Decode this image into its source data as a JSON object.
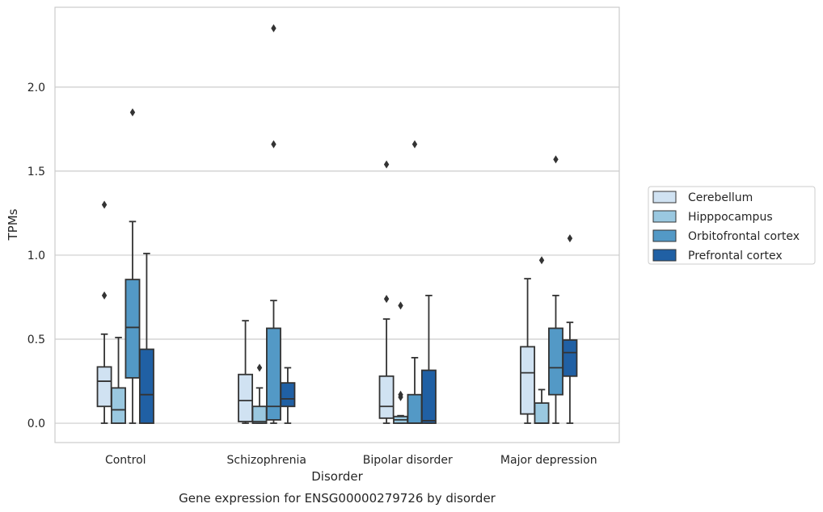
{
  "chart_data": {
    "type": "box",
    "title": "Gene expression for ENSG00000279726 by disorder",
    "xlabel": "Disorder",
    "ylabel": "TPMs",
    "ylim": [
      -0.115,
      2.475
    ],
    "y_ticks": [
      "0.0",
      "0.5",
      "1.0",
      "1.5",
      "2.0"
    ],
    "grid": true,
    "legend_position": "right",
    "categories": [
      "Control",
      "Schizophrenia",
      "Bipolar disorder",
      "Major depression"
    ],
    "series": [
      {
        "name": "Cerebellum",
        "color": "#d0e2f2",
        "boxes": [
          {
            "whislo": 0.0,
            "q1": 0.1,
            "med": 0.25,
            "q3": 0.335,
            "whishi": 0.53,
            "fliers": [
              0.76,
              1.3
            ]
          },
          {
            "whislo": 0.0,
            "q1": 0.01,
            "med": 0.135,
            "q3": 0.29,
            "whishi": 0.61,
            "fliers": []
          },
          {
            "whislo": 0.0,
            "q1": 0.03,
            "med": 0.1,
            "q3": 0.28,
            "whishi": 0.62,
            "fliers": [
              0.74,
              1.54
            ]
          },
          {
            "whislo": 0.0,
            "q1": 0.055,
            "med": 0.3,
            "q3": 0.455,
            "whishi": 0.86,
            "fliers": []
          }
        ]
      },
      {
        "name": "Hipppocampus",
        "color": "#9ac8e0",
        "boxes": [
          {
            "whislo": 0.0,
            "q1": 0.0,
            "med": 0.08,
            "q3": 0.21,
            "whishi": 0.51,
            "fliers": []
          },
          {
            "whislo": 0.0,
            "q1": 0.0,
            "med": 0.01,
            "q3": 0.1,
            "whishi": 0.21,
            "fliers": [
              0.33
            ]
          },
          {
            "whislo": 0.0,
            "q1": 0.0,
            "med": 0.02,
            "q3": 0.04,
            "whishi": 0.045,
            "fliers": [
              0.155,
              0.17,
              0.7
            ]
          },
          {
            "whislo": 0.0,
            "q1": 0.0,
            "med": 0.0,
            "q3": 0.12,
            "whishi": 0.2,
            "fliers": [
              0.97
            ]
          }
        ]
      },
      {
        "name": "Orbitofrontal cortex",
        "color": "#5399c6",
        "boxes": [
          {
            "whislo": 0.0,
            "q1": 0.27,
            "med": 0.57,
            "q3": 0.855,
            "whishi": 1.2,
            "fliers": [
              1.85
            ]
          },
          {
            "whislo": 0.0,
            "q1": 0.02,
            "med": 0.1,
            "q3": 0.565,
            "whishi": 0.73,
            "fliers": [
              1.66,
              2.35
            ]
          },
          {
            "whislo": 0.0,
            "q1": 0.0,
            "med": 0.0,
            "q3": 0.17,
            "whishi": 0.39,
            "fliers": [
              1.66
            ]
          },
          {
            "whislo": 0.0,
            "q1": 0.17,
            "med": 0.33,
            "q3": 0.565,
            "whishi": 0.76,
            "fliers": [
              1.57
            ]
          }
        ]
      },
      {
        "name": "Prefrontal cortex",
        "color": "#2060a4",
        "boxes": [
          {
            "whislo": 0.0,
            "q1": 0.0,
            "med": 0.17,
            "q3": 0.44,
            "whishi": 1.01,
            "fliers": []
          },
          {
            "whislo": 0.0,
            "q1": 0.1,
            "med": 0.145,
            "q3": 0.24,
            "whishi": 0.33,
            "fliers": []
          },
          {
            "whislo": 0.0,
            "q1": 0.0,
            "med": 0.015,
            "q3": 0.315,
            "whishi": 0.76,
            "fliers": []
          },
          {
            "whislo": 0.0,
            "q1": 0.28,
            "med": 0.42,
            "q3": 0.495,
            "whishi": 0.6,
            "fliers": [
              1.1
            ]
          }
        ]
      }
    ]
  }
}
